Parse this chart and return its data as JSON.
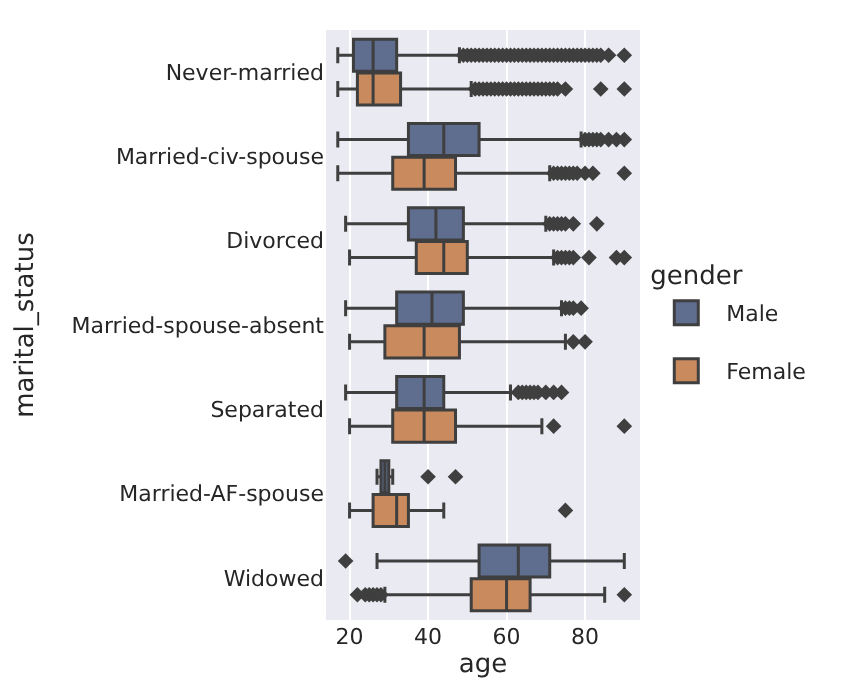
{
  "chart_data": {
    "type": "box",
    "orientation": "horizontal",
    "xlabel": "age",
    "ylabel": "marital_status",
    "legend_title": "gender",
    "legend": "right",
    "grid": "x",
    "marker": "diamond",
    "categories": [
      "Never-married",
      "Married-civ-spouse",
      "Divorced",
      "Married-spouse-absent",
      "Separated",
      "Married-AF-spouse",
      "Widowed"
    ],
    "xlim": [
      14,
      94
    ],
    "xticks": [
      20,
      40,
      60,
      80
    ],
    "series": [
      {
        "name": "Male",
        "color": "#5f6d8f",
        "boxes": [
          {
            "low": 17,
            "q1": 21,
            "median": 26,
            "q3": 32,
            "high": 48,
            "outliers": [
              49,
              50,
              51,
              52,
              53,
              54,
              55,
              56,
              57,
              58,
              59,
              60,
              61,
              62,
              63,
              64,
              65,
              66,
              67,
              68,
              69,
              70,
              71,
              72,
              73,
              74,
              75,
              76,
              77,
              78,
              79,
              80,
              81,
              82,
              83,
              84,
              86,
              90
            ]
          },
          {
            "low": 17,
            "q1": 35,
            "median": 44,
            "q3": 53,
            "high": 79,
            "outliers": [
              80,
              81,
              82,
              83,
              84,
              86,
              88,
              90
            ]
          },
          {
            "low": 19,
            "q1": 35,
            "median": 42,
            "q3": 49,
            "high": 70,
            "outliers": [
              71,
              72,
              73,
              74,
              75,
              77,
              83
            ]
          },
          {
            "low": 19,
            "q1": 32,
            "median": 41,
            "q3": 49,
            "high": 74,
            "outliers": [
              75,
              76,
              77,
              79
            ]
          },
          {
            "low": 19,
            "q1": 32,
            "median": 39,
            "q3": 44,
            "high": 61,
            "outliers": [
              63,
              64,
              65,
              66,
              67,
              68,
              70,
              72,
              74
            ]
          },
          {
            "low": 27,
            "q1": 28,
            "median": 29,
            "q3": 30,
            "high": 31,
            "outliers": [
              40,
              47
            ]
          },
          {
            "low": 27,
            "q1": 53,
            "median": 63,
            "q3": 71,
            "high": 90,
            "outliers": [
              19
            ]
          }
        ]
      },
      {
        "name": "Female",
        "color": "#c98a5e",
        "boxes": [
          {
            "low": 17,
            "q1": 22,
            "median": 26,
            "q3": 33,
            "high": 51,
            "outliers": [
              52,
              53,
              54,
              55,
              56,
              57,
              58,
              59,
              60,
              61,
              62,
              63,
              64,
              65,
              66,
              67,
              68,
              69,
              70,
              71,
              72,
              73,
              75,
              84,
              90
            ]
          },
          {
            "low": 17,
            "q1": 31,
            "median": 39,
            "q3": 47,
            "high": 71,
            "outliers": [
              72,
              73,
              74,
              75,
              76,
              77,
              78,
              80,
              82,
              90
            ]
          },
          {
            "low": 20,
            "q1": 37,
            "median": 44,
            "q3": 50,
            "high": 72,
            "outliers": [
              73,
              74,
              75,
              76,
              77,
              81,
              88,
              90
            ]
          },
          {
            "low": 20,
            "q1": 29,
            "median": 39,
            "q3": 48,
            "high": 75,
            "outliers": [
              77,
              80
            ]
          },
          {
            "low": 20,
            "q1": 31,
            "median": 39,
            "q3": 47,
            "high": 69,
            "outliers": [
              72,
              90
            ]
          },
          {
            "low": 20,
            "q1": 26,
            "median": 32,
            "q3": 35,
            "high": 44,
            "outliers": [
              75
            ]
          },
          {
            "low": 29,
            "q1": 51,
            "median": 60,
            "q3": 66,
            "high": 85,
            "outliers": [
              22,
              24,
              25,
              26,
              27,
              28,
              90
            ]
          }
        ]
      }
    ]
  }
}
